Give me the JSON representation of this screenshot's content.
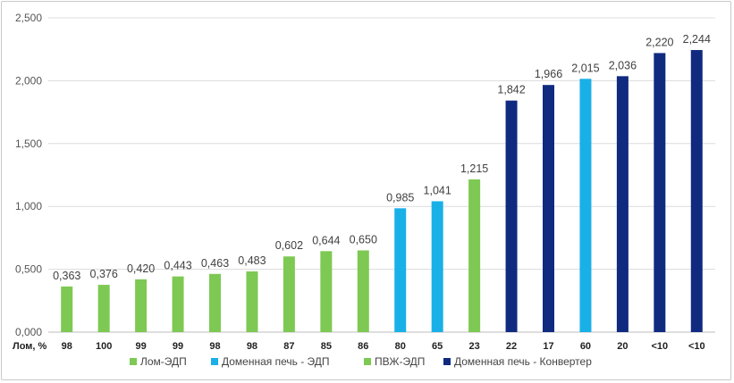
{
  "chart_data": {
    "type": "bar",
    "xlabel": "Лом, %",
    "ylabel": "",
    "ylim": [
      0,
      2.5
    ],
    "y_ticks": [
      "0,000",
      "0,500",
      "1,000",
      "1,500",
      "2,000",
      "2,500"
    ],
    "grid": true,
    "legend_position": "bottom",
    "categories": [
      "98",
      "100",
      "99",
      "99",
      "98",
      "98",
      "87",
      "85",
      "86",
      "80",
      "65",
      "23",
      "22",
      "17",
      "60",
      "20",
      "<10",
      "<10"
    ],
    "values": [
      0.363,
      0.376,
      0.42,
      0.443,
      0.463,
      0.483,
      0.602,
      0.644,
      0.65,
      0.985,
      1.041,
      1.215,
      1.842,
      1.966,
      2.015,
      2.036,
      2.22,
      2.244
    ],
    "value_labels": [
      "0,363",
      "0,376",
      "0,420",
      "0,443",
      "0,463",
      "0,483",
      "0,602",
      "0,644",
      "0,650",
      "0,985",
      "1,041",
      "1,215",
      "1,842",
      "1,966",
      "2,015",
      "2,036",
      "2,220",
      "2,244"
    ],
    "bar_series": [
      0,
      0,
      0,
      0,
      0,
      0,
      0,
      0,
      0,
      1,
      1,
      2,
      3,
      3,
      1,
      3,
      3,
      3
    ],
    "series": [
      {
        "name": "Лом-ЭДП",
        "color": "#7dc953"
      },
      {
        "name": "Доменная печь - ЭДП",
        "color": "#19b0e8"
      },
      {
        "name": "ПВЖ-ЭДП",
        "color": "#7dc953"
      },
      {
        "name": "Доменная печь - Конвертер",
        "color": "#102a80"
      }
    ]
  }
}
